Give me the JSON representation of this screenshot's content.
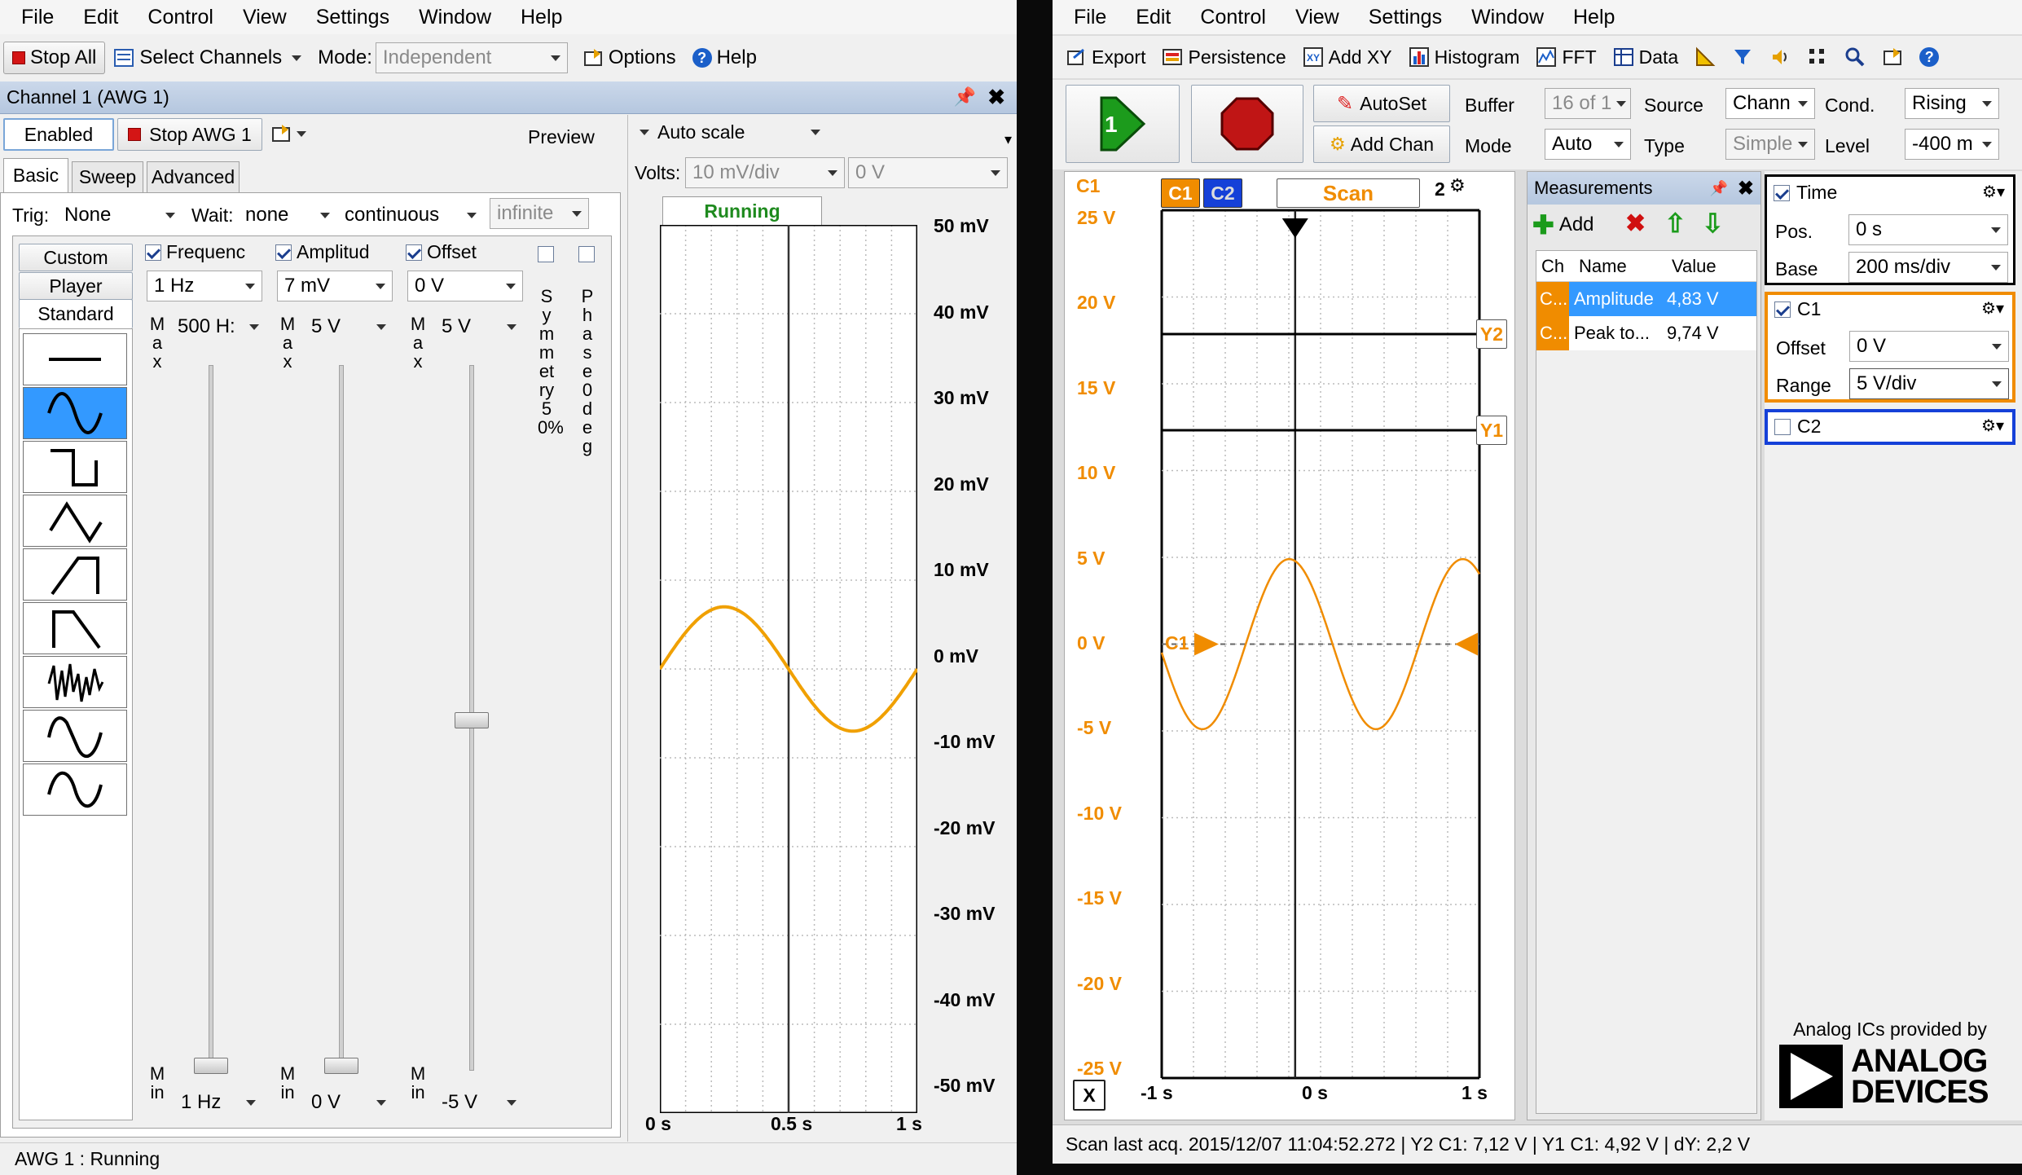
{
  "awg": {
    "menu": [
      "File",
      "Edit",
      "Control",
      "View",
      "Settings",
      "Window",
      "Help"
    ],
    "toolbar": {
      "stop_all": "Stop All",
      "select_channels": "Select Channels",
      "mode_label": "Mode:",
      "mode_value": "Independent",
      "options": "Options",
      "help": "Help"
    },
    "panel_title": "Channel 1 (AWG 1)",
    "enabled": "Enabled",
    "stop_awg": "Stop AWG 1",
    "preview": "Preview",
    "tabs": [
      "Basic",
      "Sweep",
      "Advanced"
    ],
    "trig_label": "Trig:",
    "trig_value": "None",
    "wait_label": "Wait:",
    "wait_value": "none",
    "run_mode": "continuous",
    "repeat": "infinite",
    "side_tabs": [
      "Custom",
      "Player",
      "Standard"
    ],
    "columns": {
      "frequency": {
        "label": "Frequenc",
        "value": "1 Hz",
        "max": "500 H:",
        "min": "1 Hz"
      },
      "amplitude": {
        "label": "Amplitud",
        "value": "7 mV",
        "max": "5 V",
        "min": "0 V"
      },
      "offset": {
        "label": "Offset",
        "value": "0 V",
        "max": "5 V",
        "min": "-5 V"
      }
    },
    "max_letters": "Max",
    "min_letters": "Min",
    "symmetry": "Symmetry 50%",
    "phase": "Phase 0deg",
    "preview_plot": {
      "autoscale": "Auto scale",
      "volts_label": "Volts:",
      "volts_div": "10 mV/div",
      "volts_offset": "0 V",
      "status": "Running",
      "y_ticks": [
        "50 mV",
        "40 mV",
        "30 mV",
        "20 mV",
        "10 mV",
        "0 mV",
        "-10 mV",
        "-20 mV",
        "-30 mV",
        "-40 mV",
        "-50 mV"
      ],
      "x_ticks": [
        "0 s",
        "0.5 s",
        "1 s"
      ]
    },
    "statusbar": "AWG 1 : Running"
  },
  "scope": {
    "menu": [
      "File",
      "Edit",
      "Control",
      "View",
      "Settings",
      "Window",
      "Help"
    ],
    "toolbar": [
      "Export",
      "Persistence",
      "Add XY",
      "Histogram",
      "FFT",
      "Data"
    ],
    "autoset": "AutoSet",
    "add_chan": "Add Chan",
    "buffer_label": "Buffer",
    "buffer_value": "16 of 1",
    "mode_label": "Mode",
    "mode_value": "Auto",
    "source_label": "Source",
    "source_value": "Chann",
    "type_label": "Type",
    "type_value": "Simple",
    "cond_label": "Cond.",
    "cond_value": "Rising",
    "level_label": "Level",
    "level_value": "-400 m",
    "plot": {
      "channel_label": "C1",
      "ch1_button": "C1",
      "ch2_button": "C2",
      "scan": "Scan",
      "zoom": "2",
      "y_ticks": [
        "25 V",
        "20 V",
        "15 V",
        "10 V",
        "5 V",
        "0 V",
        "-5 V",
        "-10 V",
        "-15 V",
        "-20 V",
        "-25 V"
      ],
      "x_ticks": [
        "-1 s",
        "0 s",
        "1 s"
      ],
      "cursor_y2": "Y2",
      "cursor_y1": "Y1",
      "x_button": "X",
      "c1_marker": "C1"
    },
    "measurements": {
      "title": "Measurements",
      "add": "Add",
      "headers": [
        "Ch",
        "Name",
        "Value"
      ],
      "rows": [
        {
          "ch": "C...",
          "name": "Amplitude",
          "value": "4,83 V"
        },
        {
          "ch": "C...",
          "name": "Peak to...",
          "value": "9,74 V"
        }
      ]
    },
    "time": {
      "title": "Time",
      "pos_label": "Pos.",
      "pos_value": "0 s",
      "base_label": "Base",
      "base_value": "200 ms/div"
    },
    "c1": {
      "title": "C1",
      "offset_label": "Offset",
      "offset_value": "0 V",
      "range_label": "Range",
      "range_value": "5 V/div"
    },
    "c2": {
      "title": "C2"
    },
    "branding": {
      "provided": "Analog ICs provided by",
      "name1": "ANALOG",
      "name2": "DEVICES"
    },
    "statusbar": "Scan last acq. 2015/12/07  11:04:52.272  |  Y2 C1: 7,12 V  |  Y1 C1: 4,92 V  |  dY: 2,2 V",
    "colors": {
      "c1": "#f08c00",
      "c2": "#1540d8"
    }
  }
}
